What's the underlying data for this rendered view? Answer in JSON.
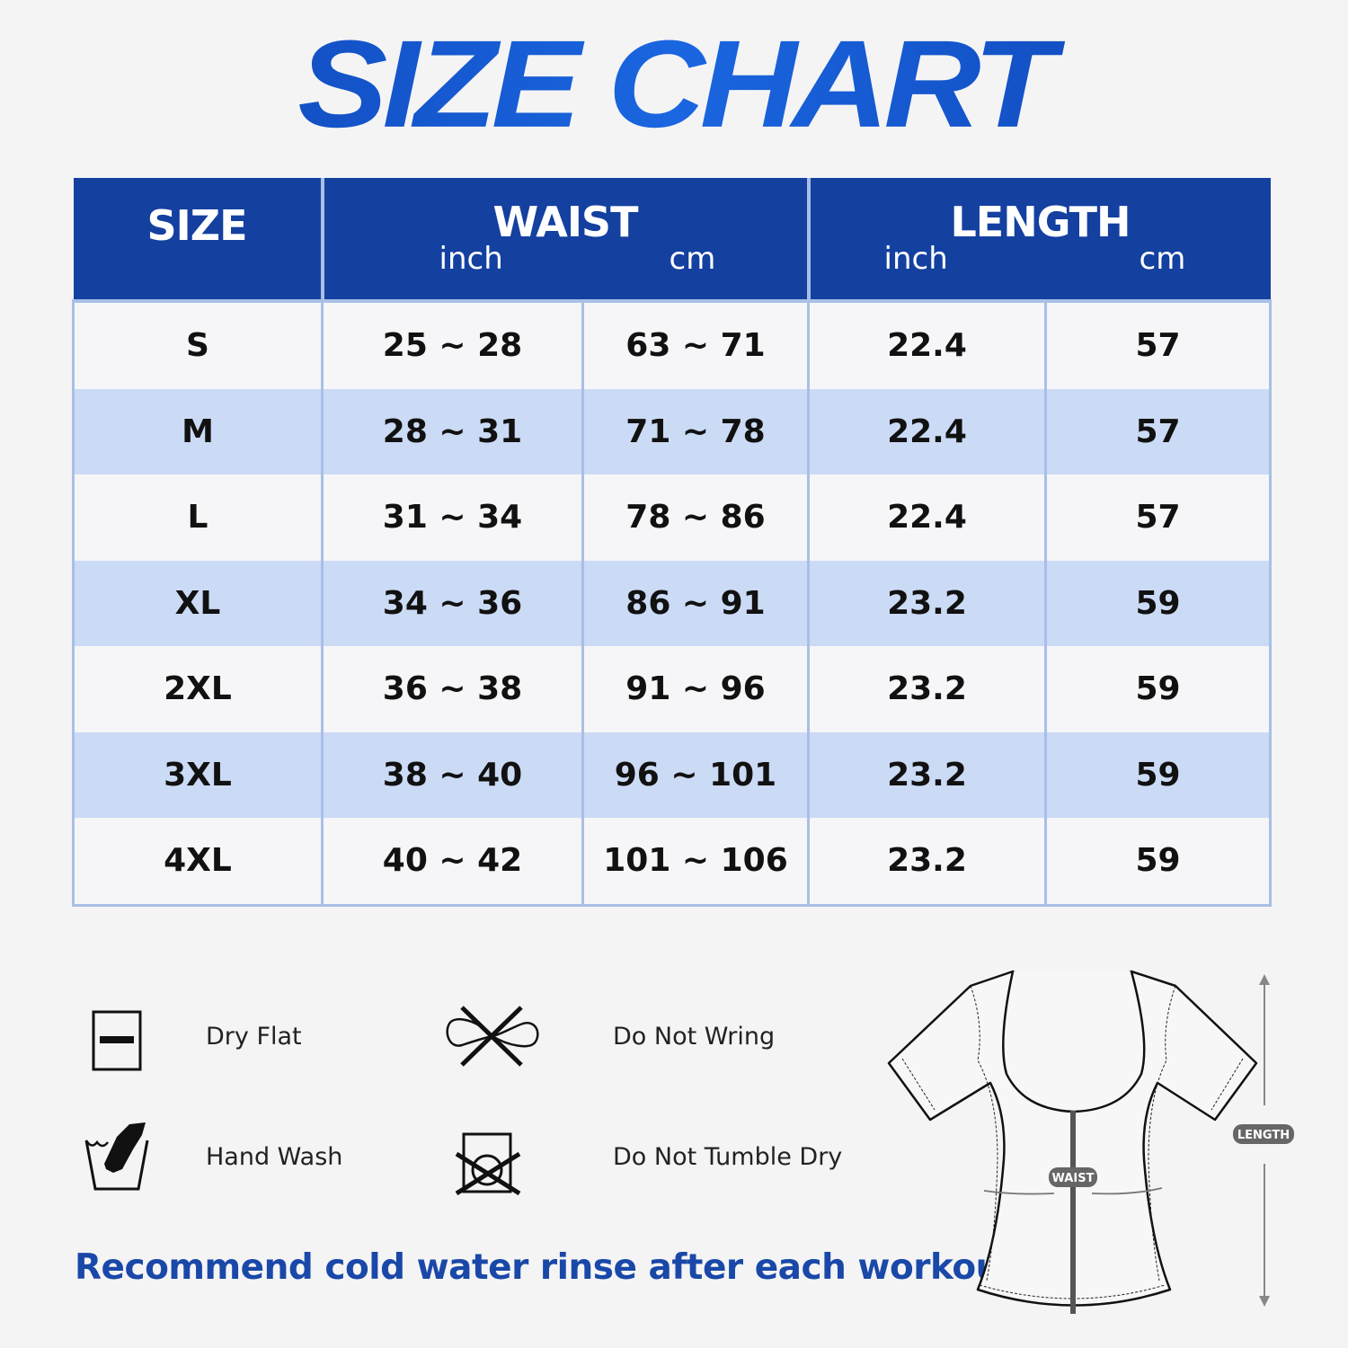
{
  "title": "SIZE CHART",
  "table": {
    "headers": {
      "size": "SIZE",
      "waist": "WAIST",
      "length": "LENGTH",
      "inch": "inch",
      "cm": "cm"
    },
    "rows": [
      {
        "size": "S",
        "waist_inch": "25 ~ 28",
        "waist_cm": "63 ~ 71",
        "length_inch": "22.4",
        "length_cm": "57"
      },
      {
        "size": "M",
        "waist_inch": "28 ~ 31",
        "waist_cm": "71 ~ 78",
        "length_inch": "22.4",
        "length_cm": "57"
      },
      {
        "size": "L",
        "waist_inch": "31 ~ 34",
        "waist_cm": "78 ~ 86",
        "length_inch": "22.4",
        "length_cm": "57"
      },
      {
        "size": "XL",
        "waist_inch": "34 ~ 36",
        "waist_cm": "86 ~ 91",
        "length_inch": "23.2",
        "length_cm": "59"
      },
      {
        "size": "2XL",
        "waist_inch": "36 ~ 38",
        "waist_cm": "91 ~ 96",
        "length_inch": "23.2",
        "length_cm": "59"
      },
      {
        "size": "3XL",
        "waist_inch": "38 ~ 40",
        "waist_cm": "96 ~ 101",
        "length_inch": "23.2",
        "length_cm": "59"
      },
      {
        "size": "4XL",
        "waist_inch": "40 ~ 42",
        "waist_cm": "101 ~ 106",
        "length_inch": "23.2",
        "length_cm": "59"
      }
    ]
  },
  "care": [
    {
      "icon": "dry-flat-icon",
      "label": "Dry Flat"
    },
    {
      "icon": "do-not-wring-icon",
      "label": "Do Not Wring"
    },
    {
      "icon": "hand-wash-icon",
      "label": "Hand Wash"
    },
    {
      "icon": "do-not-tumble-dry-icon",
      "label": "Do Not Tumble Dry"
    }
  ],
  "note": "Recommend cold water rinse after each workout.",
  "diagram": {
    "waist_label": "WAIST",
    "length_label": "LENGTH"
  },
  "colors": {
    "header_bg": "#1440a0",
    "row_alt": "#cbdaf5",
    "accent": "#1a48a8"
  }
}
